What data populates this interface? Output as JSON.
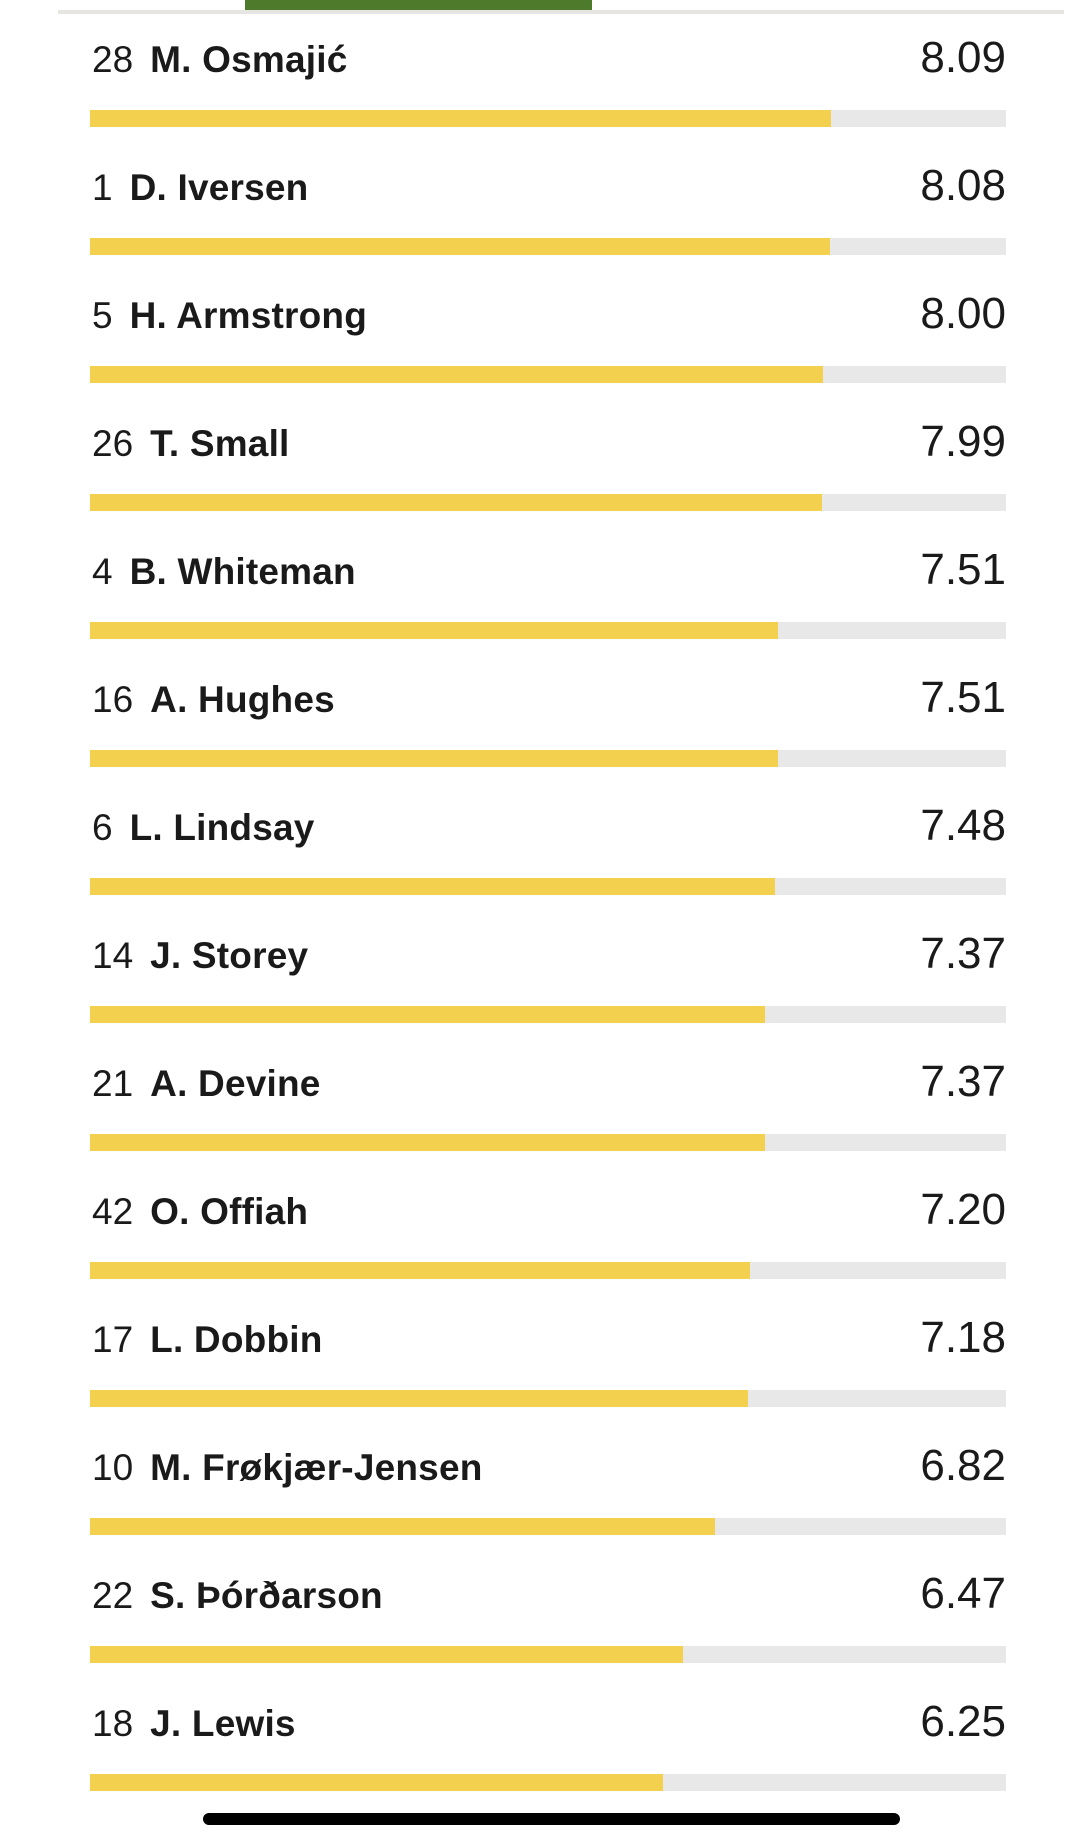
{
  "colors": {
    "bar_fill": "#f3d14e",
    "bar_track": "#e8e8e8",
    "scroll_thumb_green": "#4d7a2b",
    "scroll_track_gray": "#e6e5e1",
    "text": "#1a1a1a",
    "bottom_bar_black": "#000000"
  },
  "chart_data": {
    "type": "bar",
    "orientation": "horizontal",
    "value_range": [
      0,
      10
    ],
    "grid": false,
    "legend": false,
    "bar_color": "#f3d14e",
    "track_color": "#e8e8e8",
    "rows": [
      {
        "shirt": "28",
        "name": "M. Osmajić",
        "rating": 8.09,
        "rating_label": "8.09"
      },
      {
        "shirt": "1",
        "name": "D. Iversen",
        "rating": 8.08,
        "rating_label": "8.08"
      },
      {
        "shirt": "5",
        "name": "H. Armstrong",
        "rating": 8.0,
        "rating_label": "8.00"
      },
      {
        "shirt": "26",
        "name": "T. Small",
        "rating": 7.99,
        "rating_label": "7.99"
      },
      {
        "shirt": "4",
        "name": "B. Whiteman",
        "rating": 7.51,
        "rating_label": "7.51"
      },
      {
        "shirt": "16",
        "name": "A. Hughes",
        "rating": 7.51,
        "rating_label": "7.51"
      },
      {
        "shirt": "6",
        "name": "L. Lindsay",
        "rating": 7.48,
        "rating_label": "7.48"
      },
      {
        "shirt": "14",
        "name": "J. Storey",
        "rating": 7.37,
        "rating_label": "7.37"
      },
      {
        "shirt": "21",
        "name": "A. Devine",
        "rating": 7.37,
        "rating_label": "7.37"
      },
      {
        "shirt": "42",
        "name": "O. Offiah",
        "rating": 7.2,
        "rating_label": "7.20"
      },
      {
        "shirt": "17",
        "name": "L. Dobbin",
        "rating": 7.18,
        "rating_label": "7.18"
      },
      {
        "shirt": "10",
        "name": "M. Frøkjær-Jensen",
        "rating": 6.82,
        "rating_label": "6.82"
      },
      {
        "shirt": "22",
        "name": "S. Þórðarson",
        "rating": 6.47,
        "rating_label": "6.47"
      },
      {
        "shirt": "18",
        "name": "J. Lewis",
        "rating": 6.25,
        "rating_label": "6.25"
      }
    ]
  }
}
